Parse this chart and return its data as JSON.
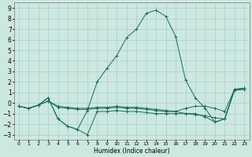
{
  "xlabel": "Humidex (Indice chaleur)",
  "bg_color": "#cce8e0",
  "line_color": "#1a6b5a",
  "grid_color": "#aacfc8",
  "xlim": [
    -0.5,
    23.5
  ],
  "ylim": [
    -3.5,
    9.5
  ],
  "xticks": [
    0,
    1,
    2,
    3,
    4,
    5,
    6,
    7,
    8,
    9,
    10,
    11,
    12,
    13,
    14,
    15,
    16,
    17,
    18,
    19,
    20,
    21,
    22,
    23
  ],
  "yticks": [
    -3,
    -2,
    -1,
    0,
    1,
    2,
    3,
    4,
    5,
    6,
    7,
    8,
    9
  ],
  "series": [
    {
      "x": [
        0,
        1,
        2,
        3,
        4,
        5,
        6,
        7,
        8,
        9,
        10,
        11,
        12,
        13,
        14,
        15,
        16,
        17,
        18,
        19,
        20,
        21,
        22,
        23
      ],
      "y": [
        -0.3,
        -0.5,
        -0.2,
        0.5,
        -1.5,
        -2.2,
        -2.5,
        -0.7,
        2.0,
        3.3,
        4.5,
        6.2,
        7.0,
        8.5,
        8.8,
        8.2,
        6.3,
        2.2,
        0.5,
        -0.5,
        -1.8,
        -1.5,
        1.3,
        1.4
      ]
    },
    {
      "x": [
        0,
        1,
        2,
        3,
        4,
        5,
        6,
        7,
        8,
        9,
        10,
        11,
        12,
        13,
        14,
        15,
        16,
        17,
        18,
        19,
        20,
        21,
        22,
        23
      ],
      "y": [
        -0.3,
        -0.5,
        -0.2,
        0.5,
        -1.5,
        -2.2,
        -2.5,
        -3.0,
        -0.8,
        -0.8,
        -0.7,
        -0.8,
        -0.8,
        -0.9,
        -1.0,
        -1.0,
        -1.0,
        -1.0,
        -1.0,
        -1.3,
        -1.8,
        -1.5,
        1.3,
        1.4
      ]
    },
    {
      "x": [
        0,
        1,
        2,
        3,
        4,
        5,
        6,
        7,
        8,
        9,
        10,
        11,
        12,
        13,
        14,
        15,
        16,
        17,
        18,
        19,
        20,
        21,
        22,
        23
      ],
      "y": [
        -0.3,
        -0.5,
        -0.2,
        0.2,
        -0.4,
        -0.5,
        -0.6,
        -0.6,
        -0.5,
        -0.5,
        -0.4,
        -0.5,
        -0.5,
        -0.6,
        -0.7,
        -0.8,
        -0.8,
        -0.5,
        -0.3,
        -0.3,
        -0.5,
        -0.8,
        1.3,
        1.4
      ]
    },
    {
      "x": [
        0,
        1,
        2,
        3,
        4,
        5,
        6,
        7,
        8,
        9,
        10,
        11,
        12,
        13,
        14,
        15,
        16,
        17,
        18,
        19,
        20,
        21,
        22,
        23
      ],
      "y": [
        -0.3,
        -0.5,
        -0.2,
        0.2,
        -0.3,
        -0.4,
        -0.5,
        -0.5,
        -0.4,
        -0.4,
        -0.3,
        -0.4,
        -0.4,
        -0.5,
        -0.6,
        -0.7,
        -0.8,
        -1.0,
        -1.1,
        -1.2,
        -1.4,
        -1.5,
        1.2,
        1.3
      ]
    }
  ]
}
